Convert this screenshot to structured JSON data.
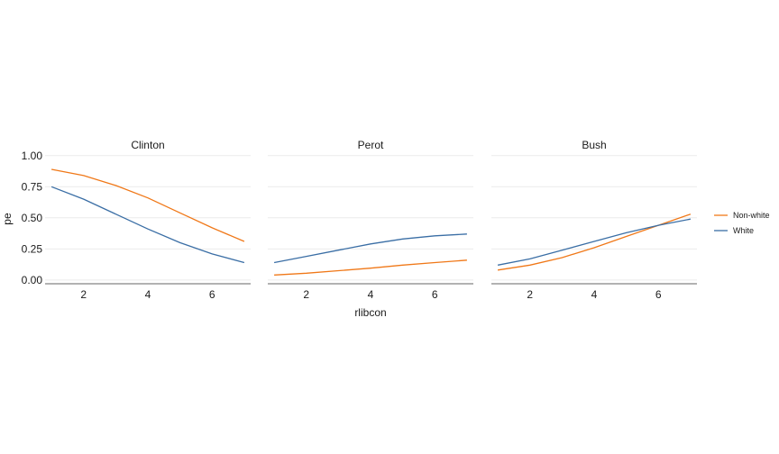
{
  "chart_data": {
    "type": "line",
    "xlabel": "rlibcon",
    "ylabel": "pe",
    "xlim": [
      0.8,
      7.2
    ],
    "ylim": [
      -0.03,
      1.02
    ],
    "x_ticks": [
      2,
      4,
      6
    ],
    "y_ticks": [
      0,
      0.25,
      0.5,
      0.75,
      1.0
    ],
    "y_tick_labels": [
      "0.00",
      "0.25",
      "0.50",
      "0.75",
      "1.00"
    ],
    "grid": "horizontal",
    "legend_position": "right",
    "x": [
      1,
      2,
      3,
      4,
      5,
      6,
      7
    ],
    "series_colors": {
      "Non-white": "#f07818",
      "White": "#3a6ea5"
    },
    "legend": [
      {
        "name": "Non-white",
        "color": "#f07818"
      },
      {
        "name": "White",
        "color": "#3a6ea5"
      }
    ],
    "panels": [
      {
        "title": "Clinton",
        "series": [
          {
            "name": "Non-white",
            "values": [
              0.89,
              0.84,
              0.76,
              0.66,
              0.54,
              0.42,
              0.31
            ]
          },
          {
            "name": "White",
            "values": [
              0.75,
              0.65,
              0.53,
              0.41,
              0.3,
              0.21,
              0.14
            ]
          }
        ]
      },
      {
        "title": "Perot",
        "series": [
          {
            "name": "Non-white",
            "values": [
              0.04,
              0.055,
              0.075,
              0.095,
              0.12,
              0.14,
              0.16
            ]
          },
          {
            "name": "White",
            "values": [
              0.14,
              0.19,
              0.24,
              0.29,
              0.33,
              0.355,
              0.37
            ]
          }
        ]
      },
      {
        "title": "Bush",
        "series": [
          {
            "name": "Non-white",
            "values": [
              0.08,
              0.12,
              0.18,
              0.26,
              0.35,
              0.44,
              0.53
            ]
          },
          {
            "name": "White",
            "values": [
              0.12,
              0.17,
              0.24,
              0.31,
              0.38,
              0.44,
              0.49
            ]
          }
        ]
      }
    ]
  }
}
